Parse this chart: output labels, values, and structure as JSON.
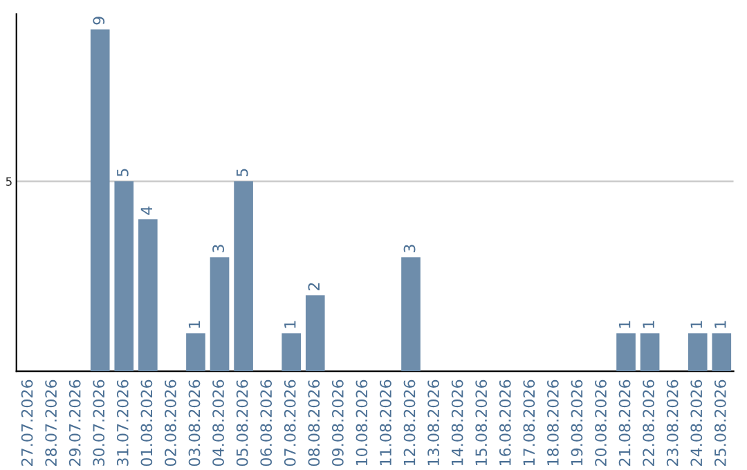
{
  "chart_data": {
    "type": "bar",
    "categories": [
      "27.07.2026",
      "28.07.2026",
      "29.07.2026",
      "30.07.2026",
      "31.07.2026",
      "01.08.2026",
      "02.08.2026",
      "03.08.2026",
      "04.08.2026",
      "05.08.2026",
      "06.08.2026",
      "07.08.2026",
      "08.08.2026",
      "09.08.2026",
      "10.08.2026",
      "11.08.2026",
      "12.08.2026",
      "13.08.2026",
      "14.08.2026",
      "15.08.2026",
      "16.08.2026",
      "17.08.2026",
      "18.08.2026",
      "19.08.2026",
      "20.08.2026",
      "21.08.2026",
      "22.08.2026",
      "23.08.2026",
      "24.08.2026",
      "25.08.2026"
    ],
    "values": [
      0,
      0,
      0,
      9,
      5,
      4,
      0,
      1,
      3,
      5,
      0,
      1,
      2,
      0,
      0,
      0,
      3,
      0,
      0,
      0,
      0,
      0,
      0,
      0,
      0,
      1,
      1,
      0,
      1,
      1
    ],
    "value_labels": [
      null,
      null,
      null,
      "9",
      "5",
      "4",
      null,
      "1",
      "3",
      "5",
      null,
      "1",
      "2",
      null,
      null,
      null,
      "3",
      null,
      null,
      null,
      null,
      null,
      null,
      null,
      null,
      "1",
      "1",
      null,
      "1",
      "1"
    ],
    "color": "#6e8dab",
    "ylim": [
      0,
      9.4
    ],
    "yticks": [
      5
    ],
    "grid": "y"
  }
}
